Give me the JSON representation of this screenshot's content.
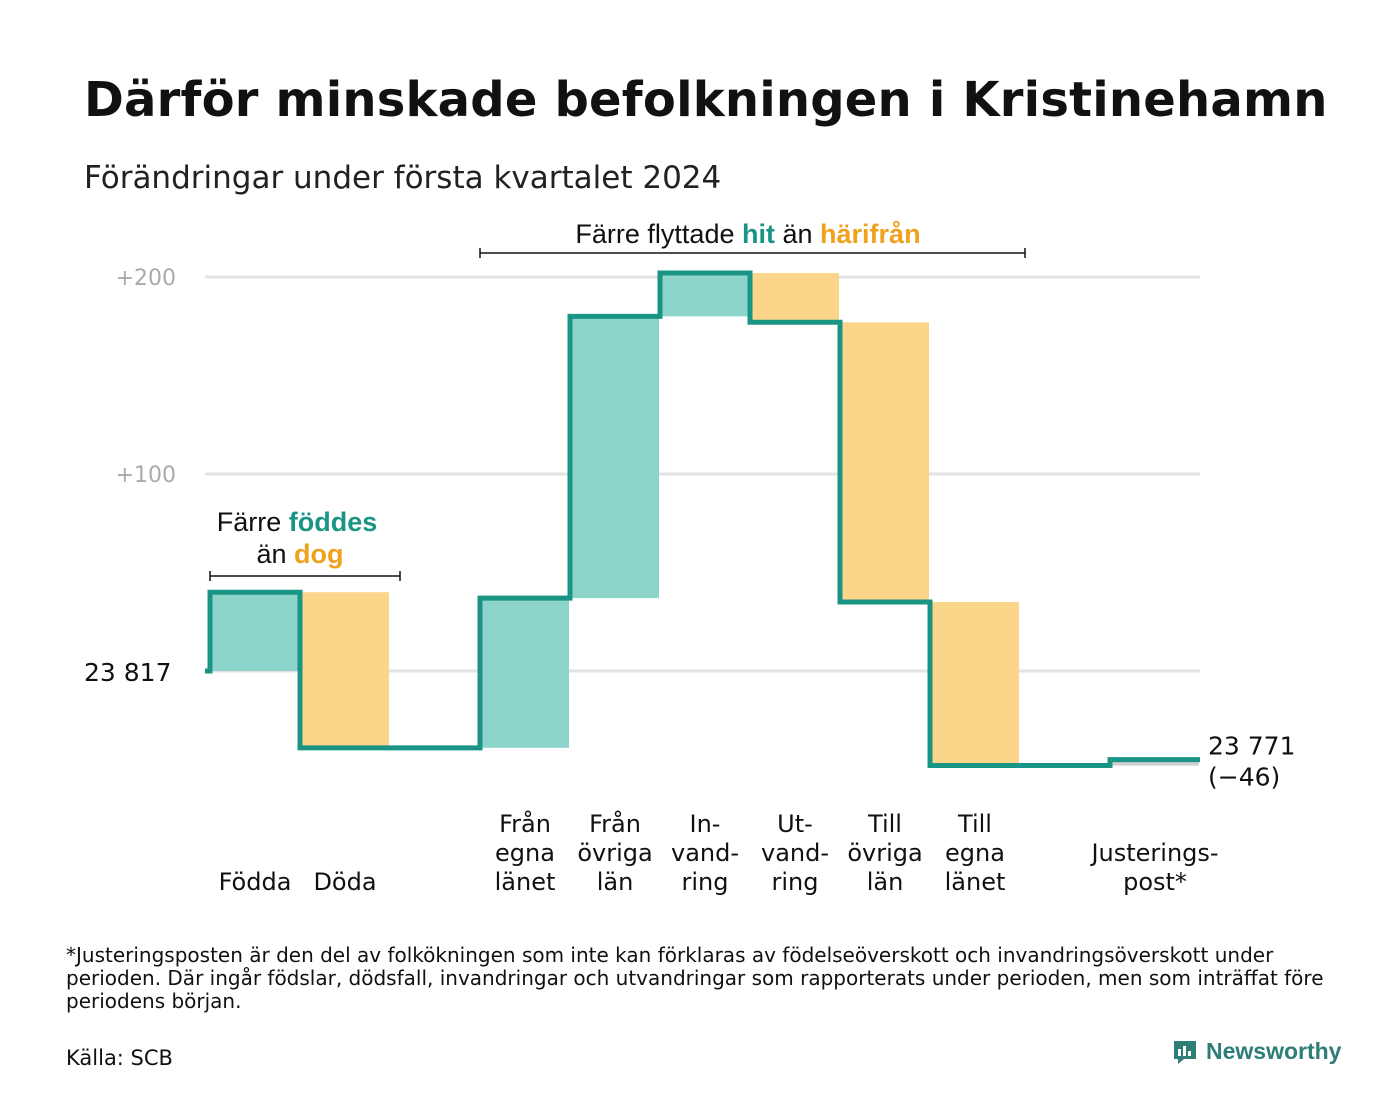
{
  "title": "Därför minskade befolkningen i Kristinehamn",
  "subtitle": "Förändringar under första kvartalet 2024",
  "footnote": "*Justeringsposten är den del av folkökningen som inte kan förklaras av födelseöverskott och invandringsöverskott under perioden. Där ingår födslar, dödsfall, invandringar och utvandringar som rapporterats under perioden, men som inträffat före periodens början.",
  "source": "Källa: SCB",
  "brand": {
    "name": "Newsworthy",
    "color": "#2e7d77"
  },
  "colors": {
    "increase_fill": "#8dd5cb",
    "decrease_fill": "#fad58a",
    "line": "#1a9585",
    "accent_teal": "#1a9585",
    "accent_orange": "#f0a21f",
    "grid": "#e3e3e3",
    "tick_text": "#aaaaaa"
  },
  "annotations": {
    "births_deaths": {
      "prefix": "Färre",
      "teal_word": "föddes",
      "mid": "än",
      "orange_word": "dog"
    },
    "migration": {
      "prefix": "Färre flyttade",
      "teal_word": "hit",
      "mid": "än",
      "orange_word": "härifrån"
    }
  },
  "chart_data": {
    "type": "waterfall",
    "start_value": 23817,
    "start_label": "23 817",
    "end_value": 23771,
    "end_label": "23 771",
    "end_change_label": "(−46)",
    "y_axis": {
      "ticks": [
        {
          "value": 100,
          "label": "+100"
        },
        {
          "value": 200,
          "label": "+200"
        }
      ],
      "range": [
        -60,
        200
      ]
    },
    "steps": [
      {
        "label": [
          "Födda"
        ],
        "change": 40,
        "kind": "increase"
      },
      {
        "label": [
          "Döda"
        ],
        "change": -79,
        "kind": "decrease"
      },
      {
        "label": [
          ""
        ],
        "change": 0,
        "kind": "gap"
      },
      {
        "label": [
          "Från",
          "egna",
          "länet"
        ],
        "change": 76,
        "kind": "increase"
      },
      {
        "label": [
          "Från",
          "övriga",
          "län"
        ],
        "change": 143,
        "kind": "increase"
      },
      {
        "label": [
          "In-",
          "vand-",
          "ring"
        ],
        "change": 22,
        "kind": "increase"
      },
      {
        "label": [
          "Ut-",
          "vand-",
          "ring"
        ],
        "change": -25,
        "kind": "decrease"
      },
      {
        "label": [
          "Till",
          "övriga",
          "län"
        ],
        "change": -142,
        "kind": "decrease"
      },
      {
        "label": [
          "Till",
          "egna",
          "länet"
        ],
        "change": -83,
        "kind": "decrease"
      },
      {
        "label": [
          ""
        ],
        "change": 0,
        "kind": "gap"
      },
      {
        "label": [
          "Justerings-",
          "post*"
        ],
        "change": 3,
        "kind": "adjustment"
      }
    ]
  }
}
